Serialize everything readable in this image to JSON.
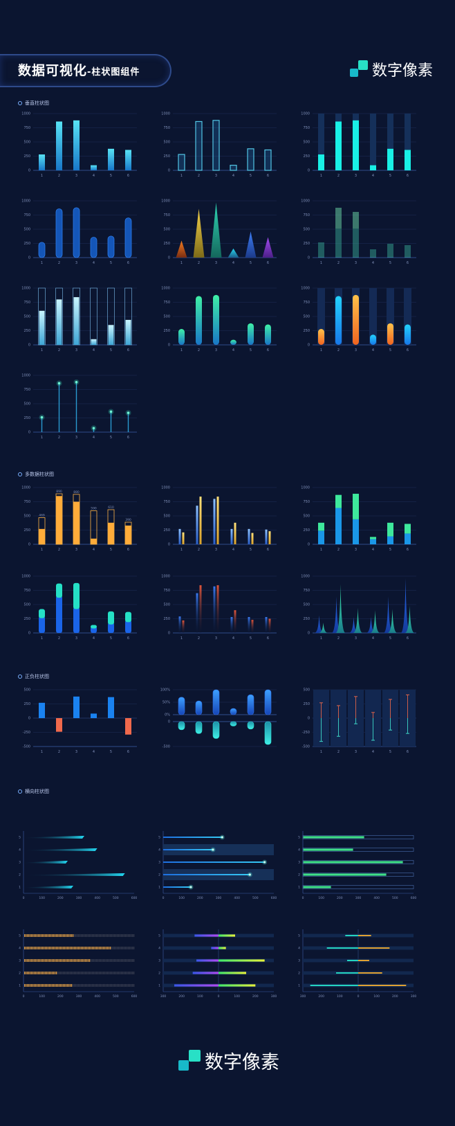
{
  "header": {
    "title": "数据可视化",
    "subtitle": "-柱状图组件",
    "brand": "数字像素"
  },
  "footer": {
    "brand": "数字像素"
  },
  "colors": {
    "bg": "#0b1530",
    "teal": "#1fe5d0",
    "cyan": "#18e7e6",
    "blue": "#1a7cf0",
    "orange": "#ffab3a",
    "red": "#f06a4e",
    "green": "#47e68a",
    "purple": "#9a4cf0"
  },
  "sections": [
    {
      "label": "垂直柱状图"
    },
    {
      "label": "多数据柱状图"
    },
    {
      "label": "正负柱状图"
    },
    {
      "label": "横向柱状图"
    }
  ],
  "chart_data": [
    {
      "id": "v1",
      "type": "bar",
      "style": "gradient",
      "categories": [
        "1",
        "2",
        "3",
        "4",
        "5",
        "6"
      ],
      "ylim": [
        0,
        1000
      ],
      "yticks": [
        "0",
        "250",
        "500",
        "750",
        "1000"
      ],
      "values": [
        280,
        860,
        880,
        90,
        380,
        360
      ]
    },
    {
      "id": "v2",
      "type": "bar",
      "style": "outline",
      "categories": [
        "1",
        "2",
        "3",
        "4",
        "5",
        "6"
      ],
      "ylim": [
        0,
        1000
      ],
      "yticks": [
        "0",
        "250",
        "500",
        "750",
        "1000"
      ],
      "values": [
        280,
        860,
        880,
        90,
        380,
        360
      ]
    },
    {
      "id": "v3",
      "type": "bar",
      "style": "cyan-track",
      "categories": [
        "1",
        "2",
        "3",
        "4",
        "5",
        "6"
      ],
      "ylim": [
        0,
        1000
      ],
      "yticks": [
        "0",
        "250",
        "500",
        "750",
        "1000"
      ],
      "values": [
        280,
        860,
        880,
        90,
        380,
        360
      ]
    },
    {
      "id": "v4",
      "type": "bar",
      "style": "pill",
      "categories": [
        "1",
        "2",
        "3",
        "4",
        "5",
        "6"
      ],
      "ylim": [
        0,
        1000
      ],
      "yticks": [
        "0",
        "250",
        "500",
        "750",
        "1000"
      ],
      "values": [
        270,
        860,
        880,
        360,
        380,
        700
      ]
    },
    {
      "id": "v5",
      "type": "bar",
      "style": "triangle",
      "categories": [
        "1",
        "2",
        "3",
        "4",
        "5",
        "6"
      ],
      "ylim": [
        0,
        1000
      ],
      "yticks": [
        "0",
        "250",
        "500",
        "750",
        "1000"
      ],
      "values": [
        300,
        860,
        970,
        160,
        460,
        360
      ]
    },
    {
      "id": "v6",
      "type": "bar",
      "style": "striped",
      "categories": [
        "1",
        "2",
        "3",
        "4",
        "5",
        "6"
      ],
      "ylim": [
        0,
        1000
      ],
      "yticks": [
        "0",
        "250",
        "500",
        "750",
        "1000"
      ],
      "values": [
        280,
        880,
        800,
        150,
        250,
        220
      ]
    },
    {
      "id": "v7",
      "type": "bar",
      "style": "frame",
      "categories": [
        "1",
        "2",
        "3",
        "4",
        "5",
        "6"
      ],
      "ylim": [
        0,
        1000
      ],
      "yticks": [
        "0",
        "250",
        "500",
        "750",
        "1000"
      ],
      "values": [
        600,
        800,
        840,
        100,
        350,
        440
      ]
    },
    {
      "id": "v8",
      "type": "bar",
      "style": "rounded-gradient",
      "categories": [
        "1",
        "2",
        "3",
        "4",
        "5",
        "6"
      ],
      "ylim": [
        0,
        1000
      ],
      "yticks": [
        "0",
        "250",
        "500",
        "750",
        "1000"
      ],
      "values": [
        280,
        860,
        880,
        90,
        380,
        360
      ]
    },
    {
      "id": "v9",
      "type": "bar",
      "style": "capsule-mixed",
      "categories": [
        "1",
        "2",
        "3",
        "4",
        "5",
        "6"
      ],
      "ylim": [
        0,
        1000
      ],
      "yticks": [
        "0",
        "250",
        "500",
        "750",
        "1000"
      ],
      "values": [
        280,
        860,
        880,
        180,
        380,
        360
      ]
    },
    {
      "id": "v10",
      "type": "bar",
      "style": "lollipop",
      "categories": [
        "1",
        "2",
        "3",
        "4",
        "5",
        "6"
      ],
      "ylim": [
        0,
        1000
      ],
      "yticks": [
        "0",
        "250",
        "500",
        "750",
        "1000"
      ],
      "values": [
        260,
        860,
        880,
        70,
        360,
        340
      ]
    },
    {
      "id": "m1",
      "type": "bar",
      "style": "target",
      "categories": [
        "1",
        "2",
        "3",
        "4",
        "5",
        "6"
      ],
      "ylim": [
        0,
        1000
      ],
      "yticks": [
        "0",
        "250",
        "500",
        "750",
        "1000"
      ],
      "labels": [
        "469",
        "890",
        "880",
        "590",
        "610",
        "390"
      ],
      "series": [
        {
          "values": [
            469,
            890,
            880,
            590,
            610,
            390
          ]
        },
        {
          "values": [
            270,
            850,
            750,
            100,
            380,
            330
          ]
        }
      ]
    },
    {
      "id": "m2",
      "type": "bar",
      "style": "grouped-thin",
      "categories": [
        "1",
        "2",
        "3",
        "4",
        "5",
        "6"
      ],
      "ylim": [
        0,
        1000
      ],
      "yticks": [
        "0",
        "250",
        "500",
        "750",
        "1000"
      ],
      "series": [
        {
          "values": [
            270,
            680,
            800,
            270,
            270,
            260
          ]
        },
        {
          "values": [
            210,
            840,
            840,
            380,
            200,
            230
          ]
        }
      ]
    },
    {
      "id": "m3",
      "type": "bar",
      "style": "stacked",
      "categories": [
        "1",
        "2",
        "3",
        "4",
        "5",
        "6"
      ],
      "ylim": [
        0,
        1000
      ],
      "yticks": [
        "0",
        "250",
        "500",
        "750",
        "1000"
      ],
      "series": [
        {
          "values": [
            240,
            640,
            440,
            90,
            140,
            190
          ]
        },
        {
          "values": [
            140,
            230,
            450,
            40,
            240,
            170
          ]
        }
      ]
    },
    {
      "id": "m4",
      "type": "bar",
      "style": "stacked-rounded",
      "categories": [
        "1",
        "2",
        "3",
        "4",
        "5",
        "6"
      ],
      "ylim": [
        0,
        1000
      ],
      "yticks": [
        "0",
        "250",
        "500",
        "750",
        "1000"
      ],
      "series": [
        {
          "values": [
            260,
            620,
            420,
            80,
            150,
            190
          ]
        },
        {
          "values": [
            160,
            250,
            460,
            60,
            230,
            180
          ]
        }
      ]
    },
    {
      "id": "m5",
      "type": "bar",
      "style": "grouped-fade",
      "categories": [
        "1",
        "2",
        "3",
        "4",
        "5",
        "6"
      ],
      "ylim": [
        0,
        1000
      ],
      "yticks": [
        "0",
        "250",
        "500",
        "750",
        "1000"
      ],
      "series": [
        {
          "values": [
            290,
            700,
            820,
            280,
            280,
            280
          ]
        },
        {
          "values": [
            220,
            840,
            840,
            400,
            230,
            250
          ]
        }
      ]
    },
    {
      "id": "m6",
      "type": "bar",
      "style": "peaks",
      "categories": [
        "1",
        "2",
        "3",
        "4",
        "5",
        "6"
      ],
      "ylim": [
        0,
        1000
      ],
      "yticks": [
        "0",
        "250",
        "500",
        "750",
        "1000"
      ],
      "series": [
        {
          "values": [
            310,
            640,
            280,
            280,
            640,
            960
          ]
        },
        {
          "values": [
            180,
            860,
            440,
            400,
            420,
            480
          ]
        }
      ]
    },
    {
      "id": "p1",
      "type": "bar",
      "style": "posneg",
      "categories": [
        "1",
        "2",
        "3",
        "4",
        "5",
        "6"
      ],
      "ylim": [
        -500,
        500
      ],
      "yticks": [
        "-500",
        "-250",
        "0",
        "250",
        "500"
      ],
      "values": [
        270,
        -240,
        380,
        80,
        370,
        -290
      ]
    },
    {
      "id": "p2",
      "type": "bar",
      "style": "posneg-pill",
      "categories": [
        "1",
        "2",
        "3",
        "4",
        "5",
        "6"
      ],
      "top_ylim": [
        0,
        100
      ],
      "top_yticks": [
        "0%",
        "50%",
        "100%"
      ],
      "bottom_ylim": [
        -100,
        0
      ],
      "bottom_yticks": [
        "0",
        "-500"
      ],
      "top_values": [
        70,
        55,
        100,
        25,
        80,
        100
      ],
      "bottom_values": [
        -33,
        -48,
        -68,
        -18,
        -30,
        -92
      ]
    },
    {
      "id": "p3",
      "type": "bar",
      "style": "range",
      "categories": [
        "1",
        "2",
        "3",
        "4",
        "5",
        "6"
      ],
      "ylim": [
        -500,
        500
      ],
      "yticks": [
        "-500",
        "-250",
        "0",
        "250",
        "500"
      ],
      "ranges": [
        [
          -410,
          270
        ],
        [
          -320,
          220
        ],
        [
          -100,
          380
        ],
        [
          -390,
          100
        ],
        [
          -210,
          330
        ],
        [
          -270,
          410
        ]
      ]
    },
    {
      "id": "h1",
      "type": "hbar",
      "style": "taper",
      "categories": [
        "1",
        "2",
        "3",
        "4",
        "5"
      ],
      "xlim": [
        0,
        600
      ],
      "xticks": [
        "0",
        "100",
        "200",
        "300",
        "400",
        "500",
        "600"
      ],
      "values": [
        270,
        550,
        240,
        400,
        330
      ]
    },
    {
      "id": "h2",
      "type": "hbar",
      "style": "glow-dot",
      "categories": [
        "1",
        "2",
        "3",
        "4",
        "5"
      ],
      "xlim": [
        0,
        600
      ],
      "xticks": [
        "0",
        "100",
        "200",
        "300",
        "400",
        "500",
        "600"
      ],
      "values": [
        150,
        470,
        550,
        270,
        320
      ]
    },
    {
      "id": "h3",
      "type": "hbar",
      "style": "track",
      "categories": [
        "1",
        "2",
        "3",
        "4",
        "5"
      ],
      "xlim": [
        0,
        600
      ],
      "xticks": [
        "0",
        "100",
        "200",
        "300",
        "400",
        "500",
        "600"
      ],
      "values": [
        150,
        450,
        540,
        270,
        330
      ]
    },
    {
      "id": "h4",
      "type": "hbar",
      "style": "segmented",
      "categories": [
        "1",
        "2",
        "3",
        "4",
        "5"
      ],
      "xlim": [
        0,
        600
      ],
      "xticks": [
        "0",
        "100",
        "200",
        "300",
        "400",
        "500",
        "600"
      ],
      "values": [
        260,
        180,
        360,
        470,
        270
      ]
    },
    {
      "id": "h5",
      "type": "hbar",
      "style": "diverging",
      "categories": [
        "1",
        "2",
        "3",
        "4",
        "5"
      ],
      "xlim": [
        -300,
        300
      ],
      "xticks": [
        "300",
        "200",
        "100",
        "0",
        "100",
        "200",
        "300"
      ],
      "series": [
        {
          "values": [
            -240,
            -140,
            -120,
            -40,
            -130
          ]
        },
        {
          "values": [
            200,
            150,
            250,
            40,
            90
          ]
        }
      ]
    },
    {
      "id": "h6",
      "type": "hbar",
      "style": "diverging-line",
      "categories": [
        "1",
        "2",
        "3",
        "4",
        "5"
      ],
      "xlim": [
        -300,
        300
      ],
      "xticks": [
        "300",
        "200",
        "100",
        "0",
        "100",
        "200",
        "300"
      ],
      "series": [
        {
          "values": [
            -260,
            -120,
            -60,
            -170,
            -70
          ]
        },
        {
          "values": [
            260,
            130,
            60,
            170,
            70
          ]
        }
      ]
    }
  ]
}
